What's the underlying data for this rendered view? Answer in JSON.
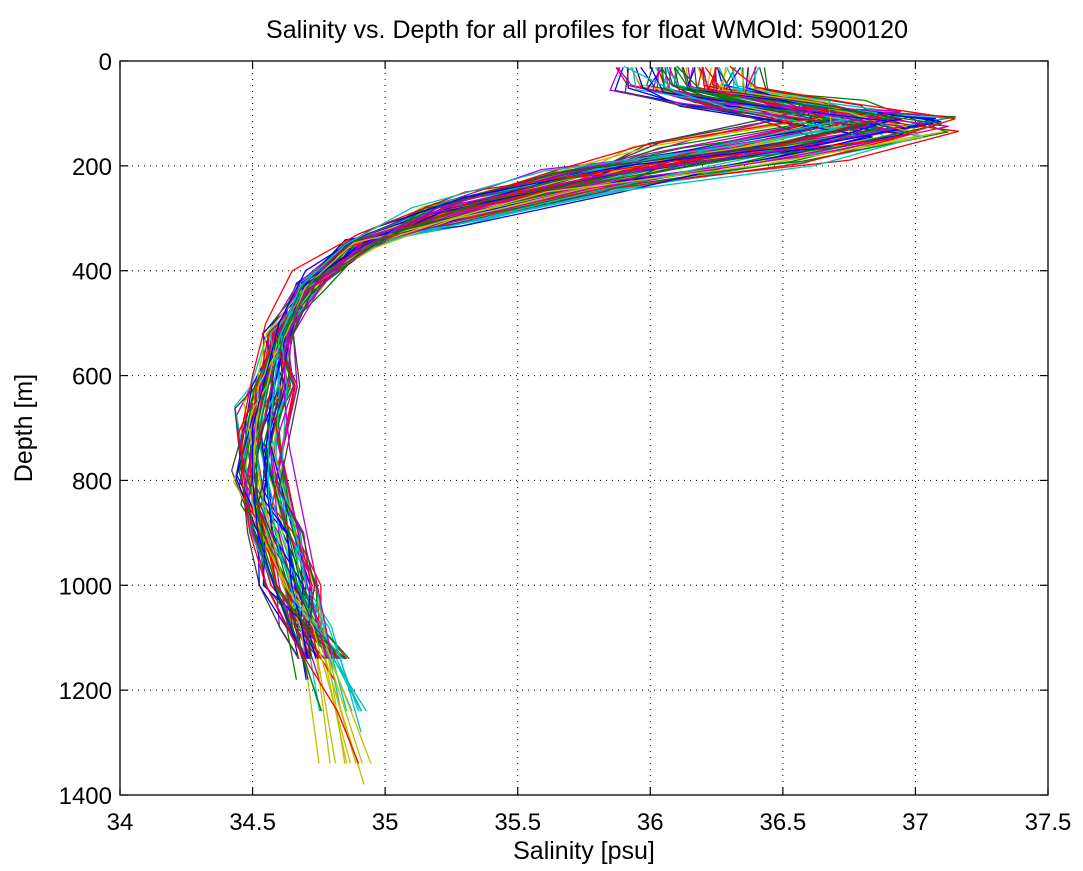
{
  "chart_data": {
    "type": "line",
    "title": "Salinity vs. Depth for all profiles for float WMOId: 5900120",
    "xlabel": "Salinity [psu]",
    "ylabel": "Depth [m]",
    "xlim": [
      34,
      37.5
    ],
    "ylim": [
      0,
      1400
    ],
    "y_reversed": true,
    "grid": true,
    "x_ticks": [
      "34",
      "34.5",
      "35",
      "35.5",
      "36",
      "36.5",
      "37",
      "37.5"
    ],
    "y_ticks": [
      "0",
      "200",
      "400",
      "600",
      "800",
      "1000",
      "1200",
      "1400"
    ],
    "series_colors": [
      "#0000ff",
      "#008000",
      "#ff0000",
      "#00bfbf",
      "#bf00bf",
      "#bfbf00",
      "#404040"
    ],
    "series_count": 70,
    "representative_profiles": [
      {
        "depth": [
          10,
          60,
          85,
          115,
          160,
          200,
          260,
          320,
          400,
          500,
          600,
          700,
          800,
          900,
          1000,
          1100,
          1140
        ],
        "salinity": [
          36.0,
          36.05,
          36.4,
          36.9,
          36.6,
          35.9,
          35.3,
          34.95,
          34.7,
          34.6,
          34.55,
          34.5,
          34.5,
          34.52,
          34.58,
          34.66,
          34.7
        ]
      },
      {
        "depth": [
          10,
          60,
          85,
          120,
          165,
          205,
          270,
          340,
          420,
          520,
          620,
          720,
          820,
          920,
          1020,
          1120,
          1240
        ],
        "salinity": [
          36.1,
          36.2,
          36.6,
          37.1,
          36.7,
          36.0,
          35.35,
          34.98,
          34.72,
          34.62,
          34.56,
          34.52,
          34.51,
          34.54,
          34.6,
          34.68,
          34.76
        ]
      },
      {
        "depth": [
          10,
          50,
          80,
          110,
          150,
          190,
          250,
          330,
          400,
          500,
          600,
          700,
          800,
          900,
          1000,
          1100,
          1240,
          1340
        ],
        "salinity": [
          36.3,
          36.4,
          36.75,
          37.15,
          36.9,
          36.1,
          35.3,
          34.9,
          34.65,
          34.55,
          34.5,
          34.46,
          34.46,
          34.49,
          34.55,
          34.65,
          34.82,
          34.9
        ]
      },
      {
        "depth": [
          10,
          60,
          90,
          130,
          170,
          210,
          280,
          350,
          430,
          530,
          630,
          730,
          830,
          930,
          1030,
          1140
        ],
        "salinity": [
          35.9,
          36.1,
          36.3,
          36.7,
          36.2,
          35.6,
          35.1,
          34.85,
          34.68,
          34.6,
          34.58,
          34.56,
          34.56,
          34.6,
          34.66,
          34.84
        ]
      },
      {
        "depth": [
          10,
          70,
          95,
          125,
          170,
          220,
          280,
          360,
          440,
          540,
          640,
          740,
          840,
          940,
          1040,
          1140
        ],
        "salinity": [
          36.4,
          36.35,
          36.55,
          36.95,
          36.5,
          35.8,
          35.2,
          34.9,
          34.7,
          34.62,
          34.62,
          34.64,
          34.68,
          34.72,
          34.76,
          34.8
        ]
      }
    ]
  }
}
